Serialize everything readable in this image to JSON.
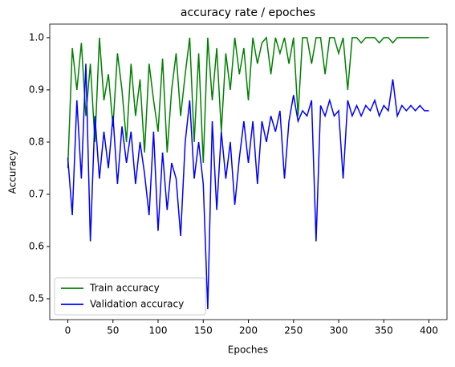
{
  "chart_data": {
    "type": "line",
    "title": "accuracy rate / epoches",
    "xlabel": "Epoches",
    "ylabel": "Accuracy",
    "x": [
      0,
      5,
      10,
      15,
      20,
      25,
      30,
      35,
      40,
      45,
      50,
      55,
      60,
      65,
      70,
      75,
      80,
      85,
      90,
      95,
      100,
      105,
      110,
      115,
      120,
      125,
      130,
      135,
      140,
      145,
      150,
      155,
      160,
      165,
      170,
      175,
      180,
      185,
      190,
      195,
      200,
      205,
      210,
      215,
      220,
      225,
      230,
      235,
      240,
      245,
      250,
      255,
      260,
      265,
      270,
      275,
      280,
      285,
      290,
      295,
      300,
      305,
      310,
      315,
      320,
      325,
      330,
      335,
      340,
      345,
      350,
      355,
      360,
      365,
      370,
      375,
      380,
      385,
      390,
      395,
      400
    ],
    "series": [
      {
        "name": "Train accuracy",
        "color": "#008000",
        "values": [
          0.75,
          0.98,
          0.9,
          0.99,
          0.85,
          0.95,
          0.8,
          1.0,
          0.88,
          0.93,
          0.83,
          0.97,
          0.9,
          0.8,
          0.95,
          0.85,
          0.92,
          0.78,
          0.95,
          0.88,
          0.82,
          0.96,
          0.78,
          0.9,
          0.97,
          0.85,
          0.93,
          1.0,
          0.8,
          0.97,
          0.76,
          1.0,
          0.88,
          0.98,
          0.82,
          0.97,
          0.9,
          1.0,
          0.93,
          0.98,
          0.88,
          1.0,
          0.95,
          0.99,
          1.0,
          0.93,
          1.0,
          0.97,
          1.0,
          0.95,
          1.0,
          0.85,
          1.0,
          1.0,
          0.95,
          1.0,
          1.0,
          0.93,
          1.0,
          1.0,
          0.97,
          1.0,
          0.9,
          1.0,
          1.0,
          0.99,
          1.0,
          1.0,
          1.0,
          0.99,
          1.0,
          1.0,
          0.99,
          1.0,
          1.0,
          1.0,
          1.0,
          1.0,
          1.0,
          1.0,
          1.0
        ]
      },
      {
        "name": "Validation accuracy",
        "color": "#0000ff",
        "values": [
          0.77,
          0.66,
          0.88,
          0.73,
          0.95,
          0.61,
          0.85,
          0.73,
          0.82,
          0.75,
          0.85,
          0.72,
          0.83,
          0.76,
          0.82,
          0.72,
          0.8,
          0.74,
          0.66,
          0.82,
          0.63,
          0.78,
          0.67,
          0.76,
          0.73,
          0.62,
          0.8,
          0.88,
          0.73,
          0.8,
          0.72,
          0.48,
          0.84,
          0.67,
          0.82,
          0.73,
          0.8,
          0.68,
          0.77,
          0.84,
          0.76,
          0.84,
          0.72,
          0.84,
          0.8,
          0.85,
          0.82,
          0.86,
          0.73,
          0.84,
          0.89,
          0.84,
          0.86,
          0.85,
          0.88,
          0.61,
          0.87,
          0.85,
          0.88,
          0.85,
          0.86,
          0.73,
          0.88,
          0.85,
          0.87,
          0.85,
          0.87,
          0.86,
          0.88,
          0.85,
          0.87,
          0.86,
          0.92,
          0.85,
          0.87,
          0.86,
          0.87,
          0.86,
          0.87,
          0.86,
          0.86
        ]
      }
    ],
    "xlim": [
      -20,
      420
    ],
    "ylim": [
      0.46,
      1.026
    ],
    "xticks": [
      0,
      50,
      100,
      150,
      200,
      250,
      300,
      350,
      400
    ],
    "yticks": [
      0.5,
      0.6,
      0.7,
      0.8,
      0.9,
      {
        "value": 1,
        "label": "1.0"
      }
    ],
    "legend": "lower left"
  }
}
